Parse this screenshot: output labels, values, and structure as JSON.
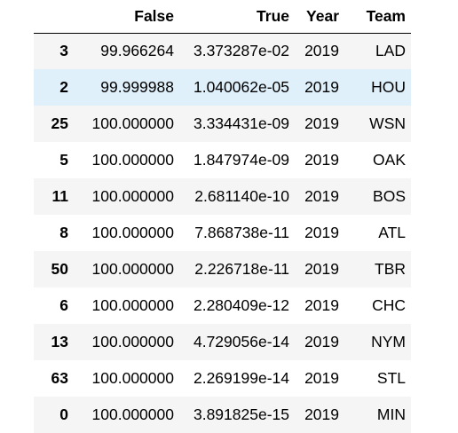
{
  "dataframe": {
    "columns": [
      "False",
      "True",
      "Year",
      "Team"
    ],
    "rows": [
      {
        "index": "3",
        "false": "99.966264",
        "true": "3.373287e-02",
        "year": "2019",
        "team": "LAD"
      },
      {
        "index": "2",
        "false": "99.999988",
        "true": "1.040062e-05",
        "year": "2019",
        "team": "HOU"
      },
      {
        "index": "25",
        "false": "100.000000",
        "true": "3.334431e-09",
        "year": "2019",
        "team": "WSN"
      },
      {
        "index": "5",
        "false": "100.000000",
        "true": "1.847974e-09",
        "year": "2019",
        "team": "OAK"
      },
      {
        "index": "11",
        "false": "100.000000",
        "true": "2.681140e-10",
        "year": "2019",
        "team": "BOS"
      },
      {
        "index": "8",
        "false": "100.000000",
        "true": "7.868738e-11",
        "year": "2019",
        "team": "ATL"
      },
      {
        "index": "50",
        "false": "100.000000",
        "true": "2.226718e-11",
        "year": "2019",
        "team": "TBR"
      },
      {
        "index": "6",
        "false": "100.000000",
        "true": "2.280409e-12",
        "year": "2019",
        "team": "CHC"
      },
      {
        "index": "13",
        "false": "100.000000",
        "true": "4.729056e-14",
        "year": "2019",
        "team": "NYM"
      },
      {
        "index": "63",
        "false": "100.000000",
        "true": "2.269199e-14",
        "year": "2019",
        "team": "STL"
      },
      {
        "index": "0",
        "false": "100.000000",
        "true": "3.891825e-15",
        "year": "2019",
        "team": "MIN"
      }
    ],
    "hovered_row": 1,
    "colors": {
      "stripe": "#f5f5f5",
      "hover": "#dff0fb",
      "header_rule": "#000000"
    }
  }
}
